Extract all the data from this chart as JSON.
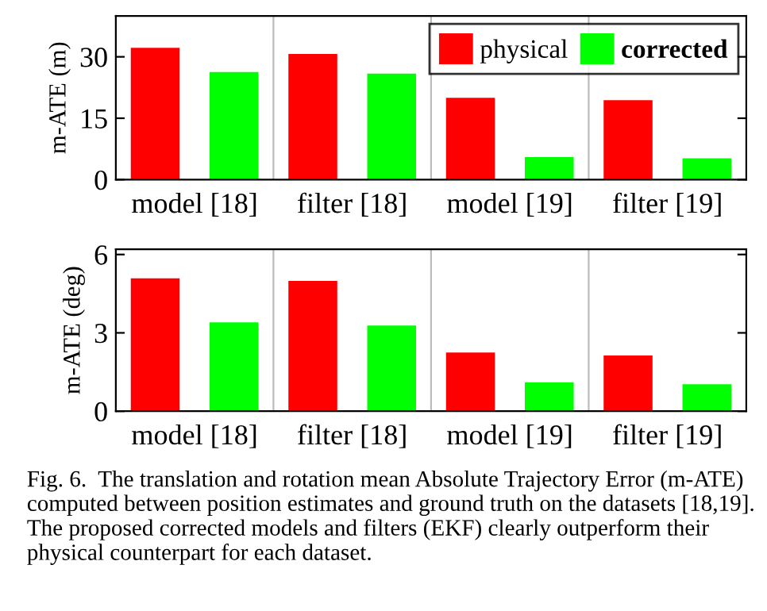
{
  "chart_data": [
    {
      "type": "bar",
      "ylabel": "m-ATE (m)",
      "categories": [
        "model [18]",
        "filter [18]",
        "model [19]",
        "filter [19]"
      ],
      "series": [
        {
          "name": "physical",
          "color": "#ff0000",
          "values": [
            32.2,
            30.7,
            20.0,
            19.4
          ]
        },
        {
          "name": "corrected",
          "color": "#00ff00",
          "values": [
            26.3,
            25.9,
            5.5,
            5.2
          ]
        }
      ],
      "ylim": [
        0,
        40
      ],
      "yticks": [
        0,
        15,
        30
      ],
      "grid": "x",
      "legend": "top right"
    },
    {
      "type": "bar",
      "ylabel": "m-ATE (deg)",
      "categories": [
        "model [18]",
        "filter [18]",
        "model [19]",
        "filter [19]"
      ],
      "series": [
        {
          "color": "#ff0000",
          "values": [
            5.09,
            4.99,
            2.25,
            2.13
          ]
        },
        {
          "color": "#00ff00",
          "values": [
            3.4,
            3.28,
            1.11,
            1.03
          ]
        }
      ],
      "ylim": [
        0,
        6.2
      ],
      "yticks": [
        0,
        3,
        6
      ],
      "grid": "x",
      "legend": false,
      "annotations": [
        "Fig. 6.  The translation and rotation mean Absolute Trajectory Error (m-ATE) computed between position estimates and ground truth on the datasets [18,19]. The proposed corrected models and filters (EKF) clearly outperform their physical counterpart for each dataset."
      ]
    }
  ]
}
